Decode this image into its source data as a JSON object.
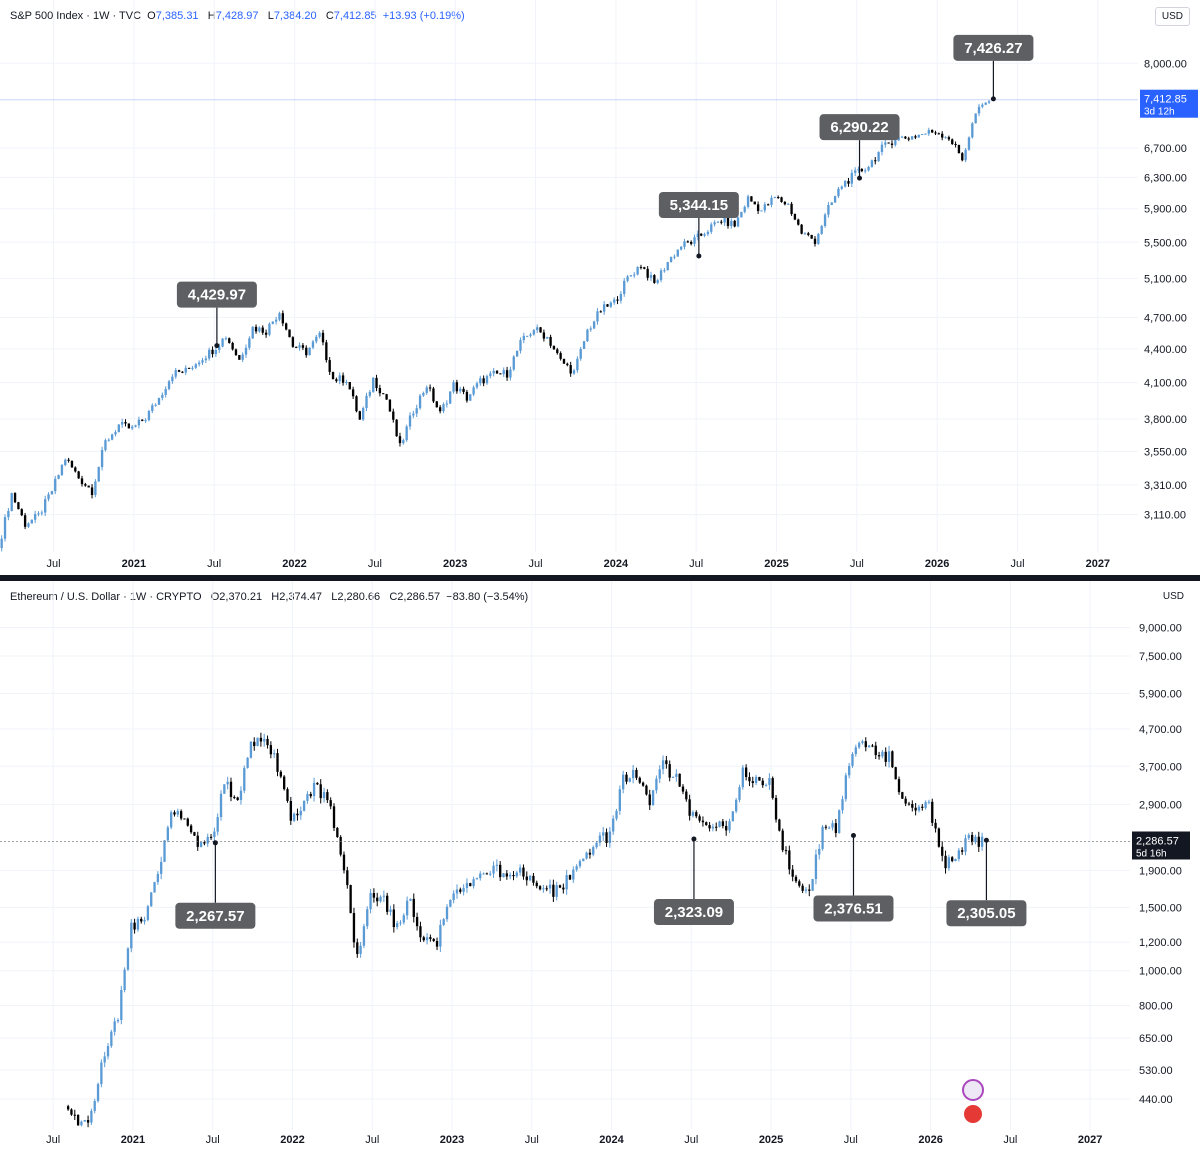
{
  "charts": [
    {
      "id": "spx",
      "legend": {
        "name": "S&P 500 Index · 1W · TVC",
        "open": "7,385.31",
        "high": "7,428.97",
        "low": "7,384.20",
        "close": "7,412.85",
        "change": "+13.93 (+0.19%)"
      },
      "currency": "USD",
      "last_price": "7,412.85",
      "countdown": "3d 12h",
      "last_value": 7412.85,
      "colors": {
        "up": "#5b9bd5",
        "down": "#000000",
        "price_line": "#2962ff",
        "grid": "#f0f3fa"
      },
      "y_ticks": [
        "8,000.00",
        "6,700.00",
        "6,300.00",
        "5,900.00",
        "5,500.00",
        "5,100.00",
        "4,700.00",
        "4,400.00",
        "4,100.00",
        "3,800.00",
        "3,550.00",
        "3,310.00",
        "3,110.00"
      ],
      "y_tick_values": [
        8000,
        6700,
        6300,
        5900,
        5500,
        5100,
        4700,
        4400,
        4100,
        3800,
        3550,
        3310,
        3110
      ],
      "x_ticks": [
        {
          "label": "Jul",
          "date": "2020-07",
          "bold": false
        },
        {
          "label": "2021",
          "date": "2021-01",
          "bold": true
        },
        {
          "label": "Jul",
          "date": "2021-07",
          "bold": false
        },
        {
          "label": "2022",
          "date": "2022-01",
          "bold": true
        },
        {
          "label": "Jul",
          "date": "2022-07",
          "bold": false
        },
        {
          "label": "2023",
          "date": "2023-01",
          "bold": true
        },
        {
          "label": "Jul",
          "date": "2023-07",
          "bold": false
        },
        {
          "label": "2024",
          "date": "2024-01",
          "bold": true
        },
        {
          "label": "Jul",
          "date": "2024-07",
          "bold": false
        },
        {
          "label": "2025",
          "date": "2025-01",
          "bold": true
        },
        {
          "label": "Jul",
          "date": "2025-07",
          "bold": false
        },
        {
          "label": "2026",
          "date": "2026-01",
          "bold": true
        },
        {
          "label": "Jul",
          "date": "2026-07",
          "bold": false
        },
        {
          "label": "2027",
          "date": "2027-01",
          "bold": true
        }
      ],
      "callouts": [
        {
          "text": "4,429.97",
          "date": "2021-07",
          "value": 4429.97,
          "side": "above"
        },
        {
          "text": "5,344.15",
          "date": "2024-07",
          "value": 5344.15,
          "side": "above"
        },
        {
          "text": "6,290.22",
          "date": "2025-07",
          "value": 6290.22,
          "side": "above"
        },
        {
          "text": "7,426.27",
          "date": "2026-05",
          "value": 7426.27,
          "side": "above"
        }
      ],
      "chart_data": {
        "type": "candlestick",
        "title": "S&P 500 Index · 1W · TVC",
        "y_scale": "log",
        "ylim": [
          2900,
          8400
        ],
        "xlim": [
          "2020-03",
          "2027-04"
        ],
        "series": [
          {
            "name": "S&P 500 Index",
            "x": [
              "2020-03",
              "2020-04",
              "2020-05",
              "2020-06",
              "2020-07",
              "2020-08",
              "2020-09",
              "2020-10",
              "2020-11",
              "2020-12",
              "2021-01",
              "2021-02",
              "2021-03",
              "2021-04",
              "2021-05",
              "2021-06",
              "2021-07",
              "2021-08",
              "2021-09",
              "2021-10",
              "2021-11",
              "2021-12",
              "2022-01",
              "2022-02",
              "2022-03",
              "2022-04",
              "2022-05",
              "2022-06",
              "2022-07",
              "2022-08",
              "2022-09",
              "2022-10",
              "2022-11",
              "2022-12",
              "2023-01",
              "2023-02",
              "2023-03",
              "2023-04",
              "2023-05",
              "2023-06",
              "2023-07",
              "2023-08",
              "2023-09",
              "2023-10",
              "2023-11",
              "2023-12",
              "2024-01",
              "2024-02",
              "2024-03",
              "2024-04",
              "2024-05",
              "2024-06",
              "2024-07",
              "2024-08",
              "2024-09",
              "2024-10",
              "2024-11",
              "2024-12",
              "2025-01",
              "2025-02",
              "2025-03",
              "2025-04",
              "2025-05",
              "2025-06",
              "2025-07",
              "2025-08",
              "2025-09",
              "2025-10",
              "2025-11",
              "2025-12",
              "2026-01",
              "2026-02",
              "2026-03",
              "2026-04",
              "2026-05"
            ],
            "values": [
              2900,
              3250,
              3050,
              3100,
              3270,
              3500,
              3360,
              3270,
              3620,
              3750,
              3720,
              3810,
              3970,
              4180,
              4200,
              4300,
              4390,
              4520,
              4300,
              4600,
              4570,
              4760,
              4430,
              4370,
              4530,
              4130,
              4130,
              3790,
              4130,
              3960,
              3580,
              3870,
              4080,
              3840,
              4080,
              3970,
              4110,
              4170,
              4180,
              4450,
              4590,
              4510,
              4290,
              4190,
              4570,
              4770,
              4850,
              5100,
              5250,
              5040,
              5280,
              5460,
              5520,
              5650,
              5760,
              5700,
              6030,
              5880,
              6040,
              5950,
              5610,
              5520,
              5900,
              6200,
              6340,
              6460,
              6690,
              6840,
              6850,
              6900,
              6940,
              6850,
              6550,
              7200,
              7412.85
            ]
          }
        ]
      }
    },
    {
      "id": "eth",
      "legend": {
        "name": "Ethereum / U.S. Dollar · 1W · CRYPTO",
        "open": "2,370.21",
        "high": "2,374.47",
        "low": "2,280.66",
        "close": "2,286.57",
        "change": "−83.80 (−3.54%)"
      },
      "currency": "USD",
      "last_price": "2,286.57",
      "countdown": "5d 16h",
      "last_value": 2286.57,
      "colors": {
        "up": "#5b9bd5",
        "down": "#000000",
        "price_line": "#787b86",
        "grid": "#f0f3fa"
      },
      "y_ticks": [
        "9,000.00",
        "7,500.00",
        "5,900.00",
        "4,700.00",
        "3,700.00",
        "2,900.00",
        "1,900.00",
        "1,500.00",
        "1,200.00",
        "1,000.00",
        "800.00",
        "650.00",
        "530.00",
        "440.00"
      ],
      "y_tick_values": [
        9000,
        7500,
        5900,
        4700,
        3700,
        2900,
        1900,
        1500,
        1200,
        1000,
        800,
        650,
        530,
        440
      ],
      "x_ticks": [
        {
          "label": "Jul",
          "date": "2020-07",
          "bold": false
        },
        {
          "label": "2021",
          "date": "2021-01",
          "bold": true
        },
        {
          "label": "Jul",
          "date": "2021-07",
          "bold": false
        },
        {
          "label": "2022",
          "date": "2022-01",
          "bold": true
        },
        {
          "label": "Jul",
          "date": "2022-07",
          "bold": false
        },
        {
          "label": "2023",
          "date": "2023-01",
          "bold": true
        },
        {
          "label": "Jul",
          "date": "2023-07",
          "bold": false
        },
        {
          "label": "2024",
          "date": "2024-01",
          "bold": true
        },
        {
          "label": "Jul",
          "date": "2024-07",
          "bold": false
        },
        {
          "label": "2025",
          "date": "2025-01",
          "bold": true
        },
        {
          "label": "Jul",
          "date": "2025-07",
          "bold": false
        },
        {
          "label": "2026",
          "date": "2026-01",
          "bold": true
        },
        {
          "label": "Jul",
          "date": "2026-07",
          "bold": false
        },
        {
          "label": "2027",
          "date": "2027-01",
          "bold": true
        }
      ],
      "callouts": [
        {
          "text": "2,267.57",
          "date": "2021-07",
          "value": 2267.57,
          "side": "below"
        },
        {
          "text": "2,323.09",
          "date": "2024-07",
          "value": 2323.09,
          "side": "below"
        },
        {
          "text": "2,376.51",
          "date": "2025-07",
          "value": 2376.51,
          "side": "below"
        },
        {
          "text": "2,305.05",
          "date": "2026-05",
          "value": 2305.05,
          "side": "below"
        }
      ],
      "chart_data": {
        "type": "candlestick",
        "title": "Ethereum / U.S. Dollar · 1W · CRYPTO",
        "y_scale": "log",
        "ylim": [
          370,
          10000
        ],
        "xlim": [
          "2020-03",
          "2027-04"
        ],
        "series": [
          {
            "name": "Ethereum / U.S. Dollar",
            "x": [
              "2020-08",
              "2020-09",
              "2020-10",
              "2020-11",
              "2020-12",
              "2021-01",
              "2021-02",
              "2021-03",
              "2021-04",
              "2021-05",
              "2021-06",
              "2021-07",
              "2021-08",
              "2021-09",
              "2021-10",
              "2021-11",
              "2021-12",
              "2022-01",
              "2022-02",
              "2022-03",
              "2022-04",
              "2022-05",
              "2022-06",
              "2022-07",
              "2022-08",
              "2022-09",
              "2022-10",
              "2022-11",
              "2022-12",
              "2023-01",
              "2023-02",
              "2023-03",
              "2023-04",
              "2023-05",
              "2023-06",
              "2023-07",
              "2023-08",
              "2023-09",
              "2023-10",
              "2023-11",
              "2023-12",
              "2024-01",
              "2024-02",
              "2024-03",
              "2024-04",
              "2024-05",
              "2024-06",
              "2024-07",
              "2024-08",
              "2024-09",
              "2024-10",
              "2024-11",
              "2024-12",
              "2025-01",
              "2025-02",
              "2025-03",
              "2025-04",
              "2025-05",
              "2025-06",
              "2025-07",
              "2025-08",
              "2025-09",
              "2025-10",
              "2025-11",
              "2025-12",
              "2026-01",
              "2026-02",
              "2026-03",
              "2026-04",
              "2026-05"
            ],
            "values": [
              420,
              370,
              400,
              600,
              740,
              1320,
              1420,
              1900,
              2800,
              2650,
              2280,
              2300,
              3300,
              3000,
              4300,
              4600,
              3700,
              2700,
              2950,
              3280,
              2800,
              1950,
              1080,
              1700,
              1550,
              1330,
              1580,
              1200,
              1200,
              1580,
              1650,
              1800,
              1900,
              1870,
              1900,
              1850,
              1650,
              1680,
              1800,
              2050,
              2300,
              2350,
              3400,
              3500,
              3000,
              3700,
              3400,
              2800,
              2500,
              2600,
              2550,
              3600,
              3400,
              3300,
              2200,
              1800,
              1600,
              2550,
              2500,
              3800,
              4400,
              4100,
              3900,
              3000,
              2900,
              2900,
              2000,
              2050,
              2350,
              2286.57
            ]
          }
        ]
      }
    }
  ]
}
